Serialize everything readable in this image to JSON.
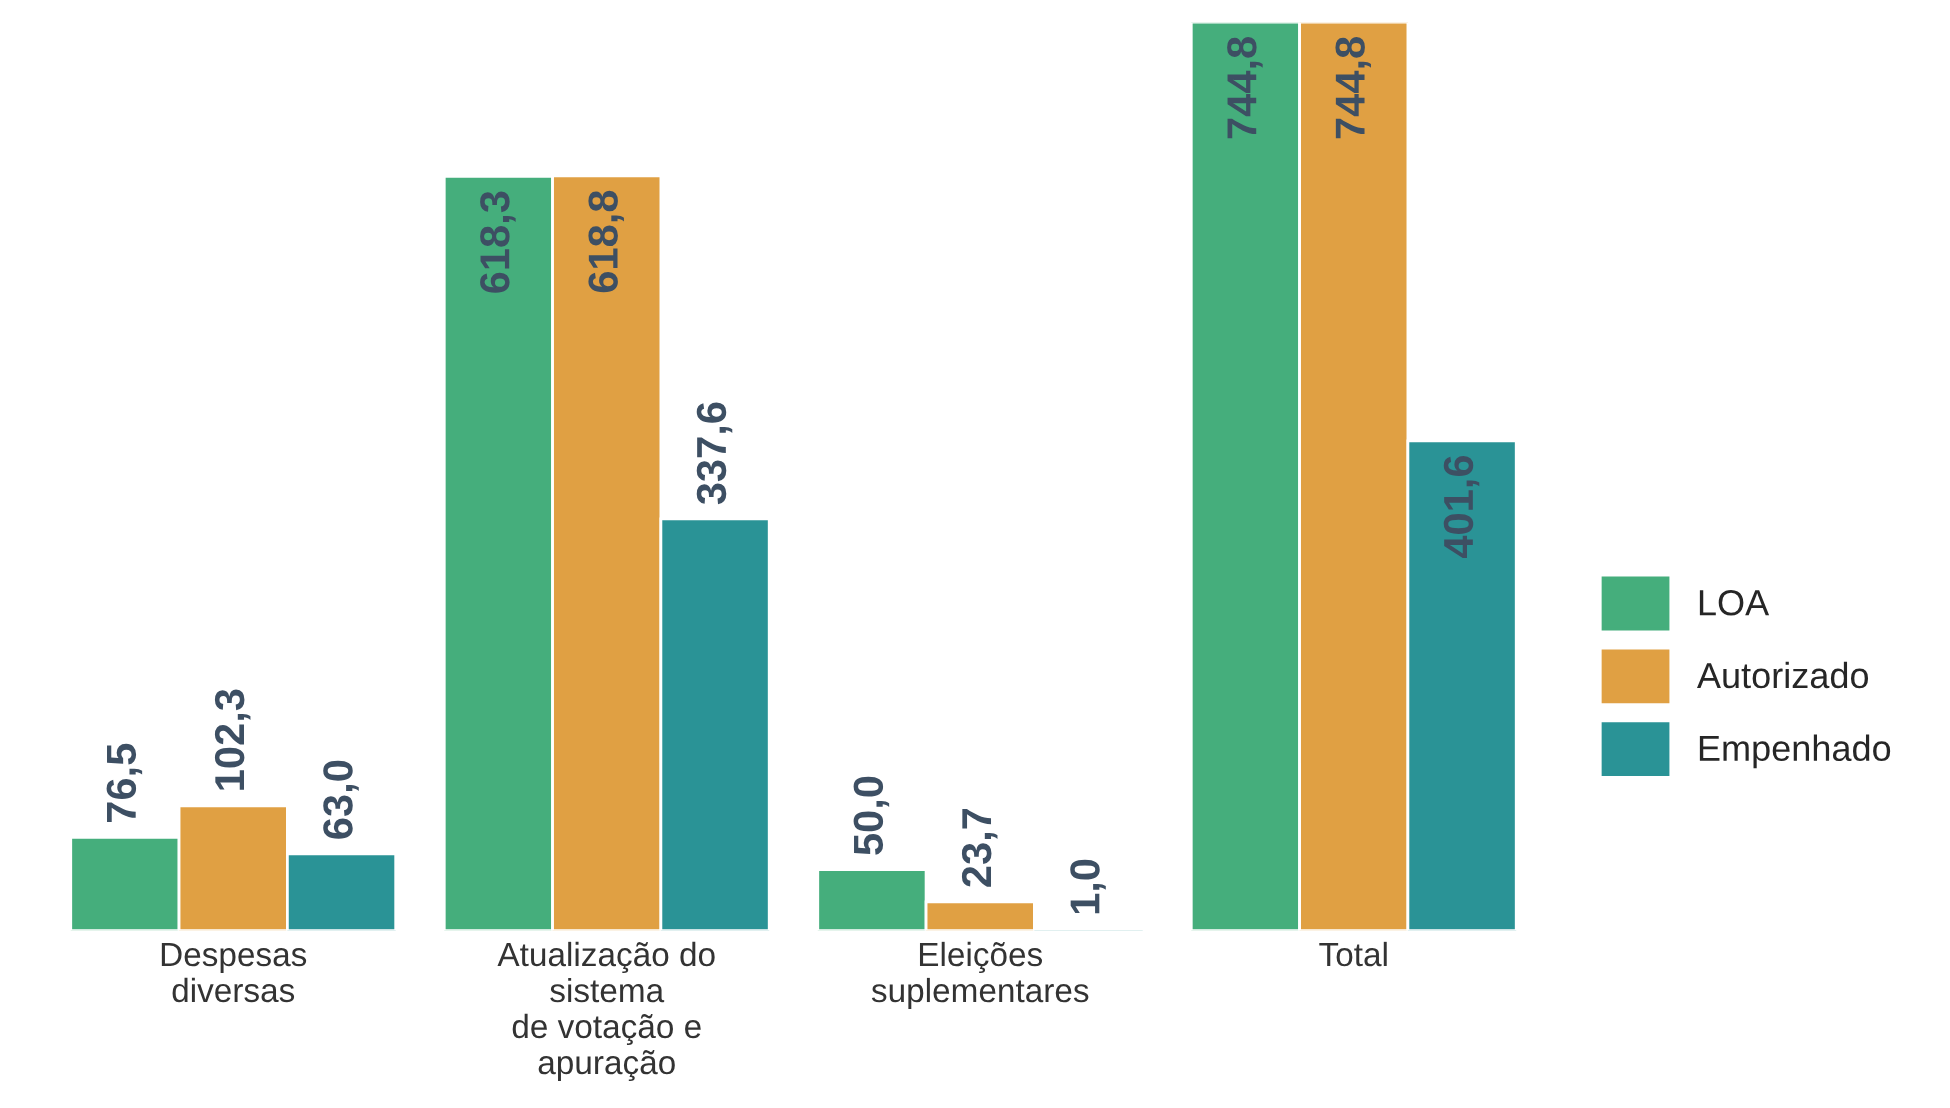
{
  "chart_data": {
    "type": "bar",
    "categories": [
      "Despesas\ndiversas",
      "Atualização do\nsistema\nde votação e\napuração",
      "Eleições\nsuplementares",
      "Total"
    ],
    "series": [
      {
        "name": "LOA",
        "color": "#45ae7c",
        "values": [
          76.5,
          618.3,
          50.0,
          744.8
        ],
        "value_labels": [
          "76,5",
          "618,3",
          "50,0",
          "744,8"
        ]
      },
      {
        "name": "Autorizado",
        "color": "#e0a043",
        "values": [
          102.3,
          618.8,
          23.7,
          744.8
        ],
        "value_labels": [
          "102,3",
          "618,8",
          "23,7",
          "744,8"
        ]
      },
      {
        "name": "Empenhado",
        "color": "#2a9396",
        "values": [
          63.0,
          337.6,
          1.0,
          401.6
        ],
        "value_labels": [
          "63,0",
          "337,6",
          "1,0",
          "401,6"
        ]
      }
    ],
    "legend": "right",
    "grid": false
  }
}
